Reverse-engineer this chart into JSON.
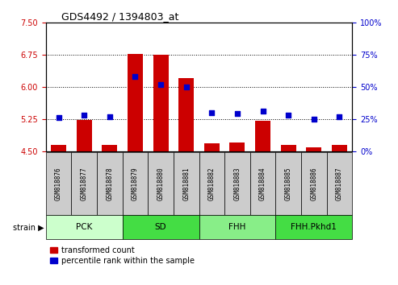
{
  "title": "GDS4492 / 1394803_at",
  "samples": [
    "GSM818876",
    "GSM818877",
    "GSM818878",
    "GSM818879",
    "GSM818880",
    "GSM818881",
    "GSM818882",
    "GSM818883",
    "GSM818884",
    "GSM818885",
    "GSM818886",
    "GSM818887"
  ],
  "transformed_counts": [
    4.65,
    5.22,
    4.65,
    6.77,
    6.75,
    6.2,
    4.68,
    4.7,
    5.21,
    4.65,
    4.58,
    4.65
  ],
  "percentile_ranks": [
    26,
    28,
    27,
    58,
    52,
    50,
    30,
    29,
    31,
    28,
    25,
    27
  ],
  "groups": [
    {
      "label": "PCK",
      "start": 0,
      "end": 3,
      "color": "#ccffcc"
    },
    {
      "label": "SD",
      "start": 3,
      "end": 6,
      "color": "#44dd44"
    },
    {
      "label": "FHH",
      "start": 6,
      "end": 9,
      "color": "#88ee88"
    },
    {
      "label": "FHH.Pkhd1",
      "start": 9,
      "end": 12,
      "color": "#44dd44"
    }
  ],
  "ylim_left": [
    4.5,
    7.5
  ],
  "ylim_right": [
    0,
    100
  ],
  "yticks_left": [
    4.5,
    5.25,
    6.0,
    6.75,
    7.5
  ],
  "yticks_right": [
    0,
    25,
    50,
    75,
    100
  ],
  "bar_color": "#cc0000",
  "dot_color": "#0000cc",
  "grid_color": "#000000",
  "tick_area_color": "#cccccc",
  "legend_bar_label": "transformed count",
  "legend_dot_label": "percentile rank within the sample",
  "strain_label": "strain"
}
